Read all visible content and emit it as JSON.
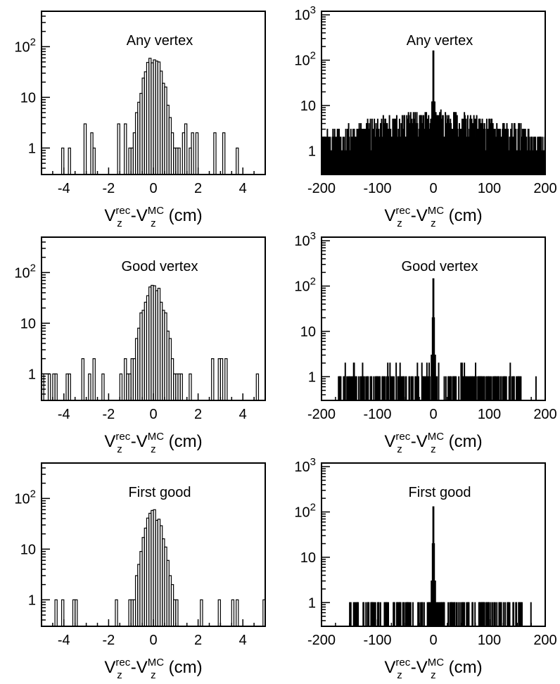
{
  "chart_data": [
    {
      "type": "histogram",
      "panel": "any-vertex-narrow",
      "title": "Any vertex",
      "xlabel": {
        "base1": "V",
        "sub1": "z",
        "sup1": "rec",
        "dash": "-",
        "base2": "V",
        "sub2": "z",
        "sup2": "MC",
        "unit": "(cm)"
      },
      "xlim": [
        -5,
        5
      ],
      "ylim": [
        0.3,
        500
      ],
      "log_y": true,
      "x_ticks": [
        {
          "value": -4,
          "label": "-4"
        },
        {
          "value": -2,
          "label": "-2"
        },
        {
          "value": 0,
          "label": "0"
        },
        {
          "value": 2,
          "label": "2"
        },
        {
          "value": 4,
          "label": "4"
        }
      ],
      "y_ticks": [
        {
          "value": 1,
          "label": "1"
        },
        {
          "value": 10,
          "label": "10"
        },
        {
          "value": 100,
          "label": "10",
          "sup": "2"
        }
      ],
      "grid": false,
      "bins": {
        "width": 0.1,
        "peak_value": 55,
        "center_sigma": 0.32,
        "tail_density": 0.3,
        "tail_max": 3
      }
    },
    {
      "type": "histogram",
      "panel": "any-vertex-wide",
      "title": "Any vertex",
      "xlabel": {
        "base1": "V",
        "sub1": "z",
        "sup1": "rec",
        "dash": "-",
        "base2": "V",
        "sub2": "z",
        "sup2": "MC",
        "unit": "(cm)"
      },
      "xlim": [
        -200,
        200
      ],
      "ylim": [
        0.3,
        1200
      ],
      "log_y": true,
      "x_ticks": [
        {
          "value": -200,
          "label": "-200"
        },
        {
          "value": -100,
          "label": "-100"
        },
        {
          "value": 0,
          "label": "0"
        },
        {
          "value": 100,
          "label": "100"
        },
        {
          "value": 200,
          "label": "200"
        }
      ],
      "y_ticks": [
        {
          "value": 1,
          "label": "1"
        },
        {
          "value": 10,
          "label": "10"
        },
        {
          "value": 100,
          "label": "10",
          "sup": "2"
        },
        {
          "value": 1000,
          "label": "10",
          "sup": "3"
        }
      ],
      "grid": false,
      "bins": {
        "width": 1,
        "peak_value": 160,
        "background_center": 5,
        "background_edge": 1.5,
        "tail_density": 1.0
      }
    },
    {
      "type": "histogram",
      "panel": "good-vertex-narrow",
      "title": "Good vertex",
      "xlabel": {
        "base1": "V",
        "sub1": "z",
        "sup1": "rec",
        "dash": "-",
        "base2": "V",
        "sub2": "z",
        "sup2": "MC",
        "unit": "(cm)"
      },
      "xlim": [
        -5,
        5
      ],
      "ylim": [
        0.3,
        500
      ],
      "log_y": true,
      "x_ticks": [
        {
          "value": -4,
          "label": "-4"
        },
        {
          "value": -2,
          "label": "-2"
        },
        {
          "value": 0,
          "label": "0"
        },
        {
          "value": 2,
          "label": "2"
        },
        {
          "value": 4,
          "label": "4"
        }
      ],
      "y_ticks": [
        {
          "value": 1,
          "label": "1"
        },
        {
          "value": 10,
          "label": "10"
        },
        {
          "value": 100,
          "label": "10",
          "sup": "2"
        }
      ],
      "grid": false,
      "bins": {
        "width": 0.1,
        "peak_value": 52,
        "center_sigma": 0.33,
        "tail_density": 0.22,
        "tail_max": 2
      }
    },
    {
      "type": "histogram",
      "panel": "good-vertex-wide",
      "title": "Good vertex",
      "xlabel": {
        "base1": "V",
        "sub1": "z",
        "sup1": "rec",
        "dash": "-",
        "base2": "V",
        "sub2": "z",
        "sup2": "MC",
        "unit": "(cm)"
      },
      "xlim": [
        -200,
        200
      ],
      "ylim": [
        0.3,
        1200
      ],
      "log_y": true,
      "x_ticks": [
        {
          "value": -200,
          "label": "-200"
        },
        {
          "value": -100,
          "label": "-100"
        },
        {
          "value": 0,
          "label": "0"
        },
        {
          "value": 100,
          "label": "100"
        },
        {
          "value": 200,
          "label": "200"
        }
      ],
      "y_ticks": [
        {
          "value": 1,
          "label": "1"
        },
        {
          "value": 10,
          "label": "10"
        },
        {
          "value": 100,
          "label": "10",
          "sup": "2"
        },
        {
          "value": 1000,
          "label": "10",
          "sup": "3"
        }
      ],
      "grid": false,
      "bins": {
        "width": 1,
        "peak_value": 145,
        "range": [
          -170,
          160
        ],
        "fill_density": 0.55,
        "tail_max": 2
      }
    },
    {
      "type": "histogram",
      "panel": "first-good-narrow",
      "title": "First good",
      "xlabel": {
        "base1": "V",
        "sub1": "z",
        "sup1": "rec",
        "dash": "-",
        "base2": "V",
        "sub2": "z",
        "sup2": "MC",
        "unit": "(cm)"
      },
      "xlim": [
        -5,
        5
      ],
      "ylim": [
        0.3,
        500
      ],
      "log_y": true,
      "x_ticks": [
        {
          "value": -4,
          "label": "-4"
        },
        {
          "value": -2,
          "label": "-2"
        },
        {
          "value": 0,
          "label": "0"
        },
        {
          "value": 2,
          "label": "2"
        },
        {
          "value": 4,
          "label": "4"
        }
      ],
      "y_ticks": [
        {
          "value": 1,
          "label": "1"
        },
        {
          "value": 10,
          "label": "10"
        },
        {
          "value": 100,
          "label": "10",
          "sup": "2"
        }
      ],
      "grid": false,
      "bins": {
        "width": 0.1,
        "peak_value": 48,
        "center_sigma": 0.3,
        "tail_density": 0.15,
        "tail_max": 1
      }
    },
    {
      "type": "histogram",
      "panel": "first-good-wide",
      "title": "First good",
      "xlabel": {
        "base1": "V",
        "sub1": "z",
        "sup1": "rec",
        "dash": "-",
        "base2": "V",
        "sub2": "z",
        "sup2": "MC",
        "unit": "(cm)"
      },
      "xlim": [
        -200,
        200
      ],
      "ylim": [
        0.3,
        1200
      ],
      "log_y": true,
      "x_ticks": [
        {
          "value": -200,
          "label": "-200"
        },
        {
          "value": -100,
          "label": "-100"
        },
        {
          "value": 0,
          "label": "0"
        },
        {
          "value": 100,
          "label": "100"
        },
        {
          "value": 200,
          "label": "200"
        }
      ],
      "y_ticks": [
        {
          "value": 1,
          "label": "1"
        },
        {
          "value": 10,
          "label": "10"
        },
        {
          "value": 100,
          "label": "10",
          "sup": "2"
        },
        {
          "value": 1000,
          "label": "10",
          "sup": "3"
        }
      ],
      "grid": false,
      "bins": {
        "width": 1,
        "peak_value": 130,
        "range": [
          -150,
          160
        ],
        "fill_density": 0.45,
        "tail_max": 1
      }
    }
  ]
}
